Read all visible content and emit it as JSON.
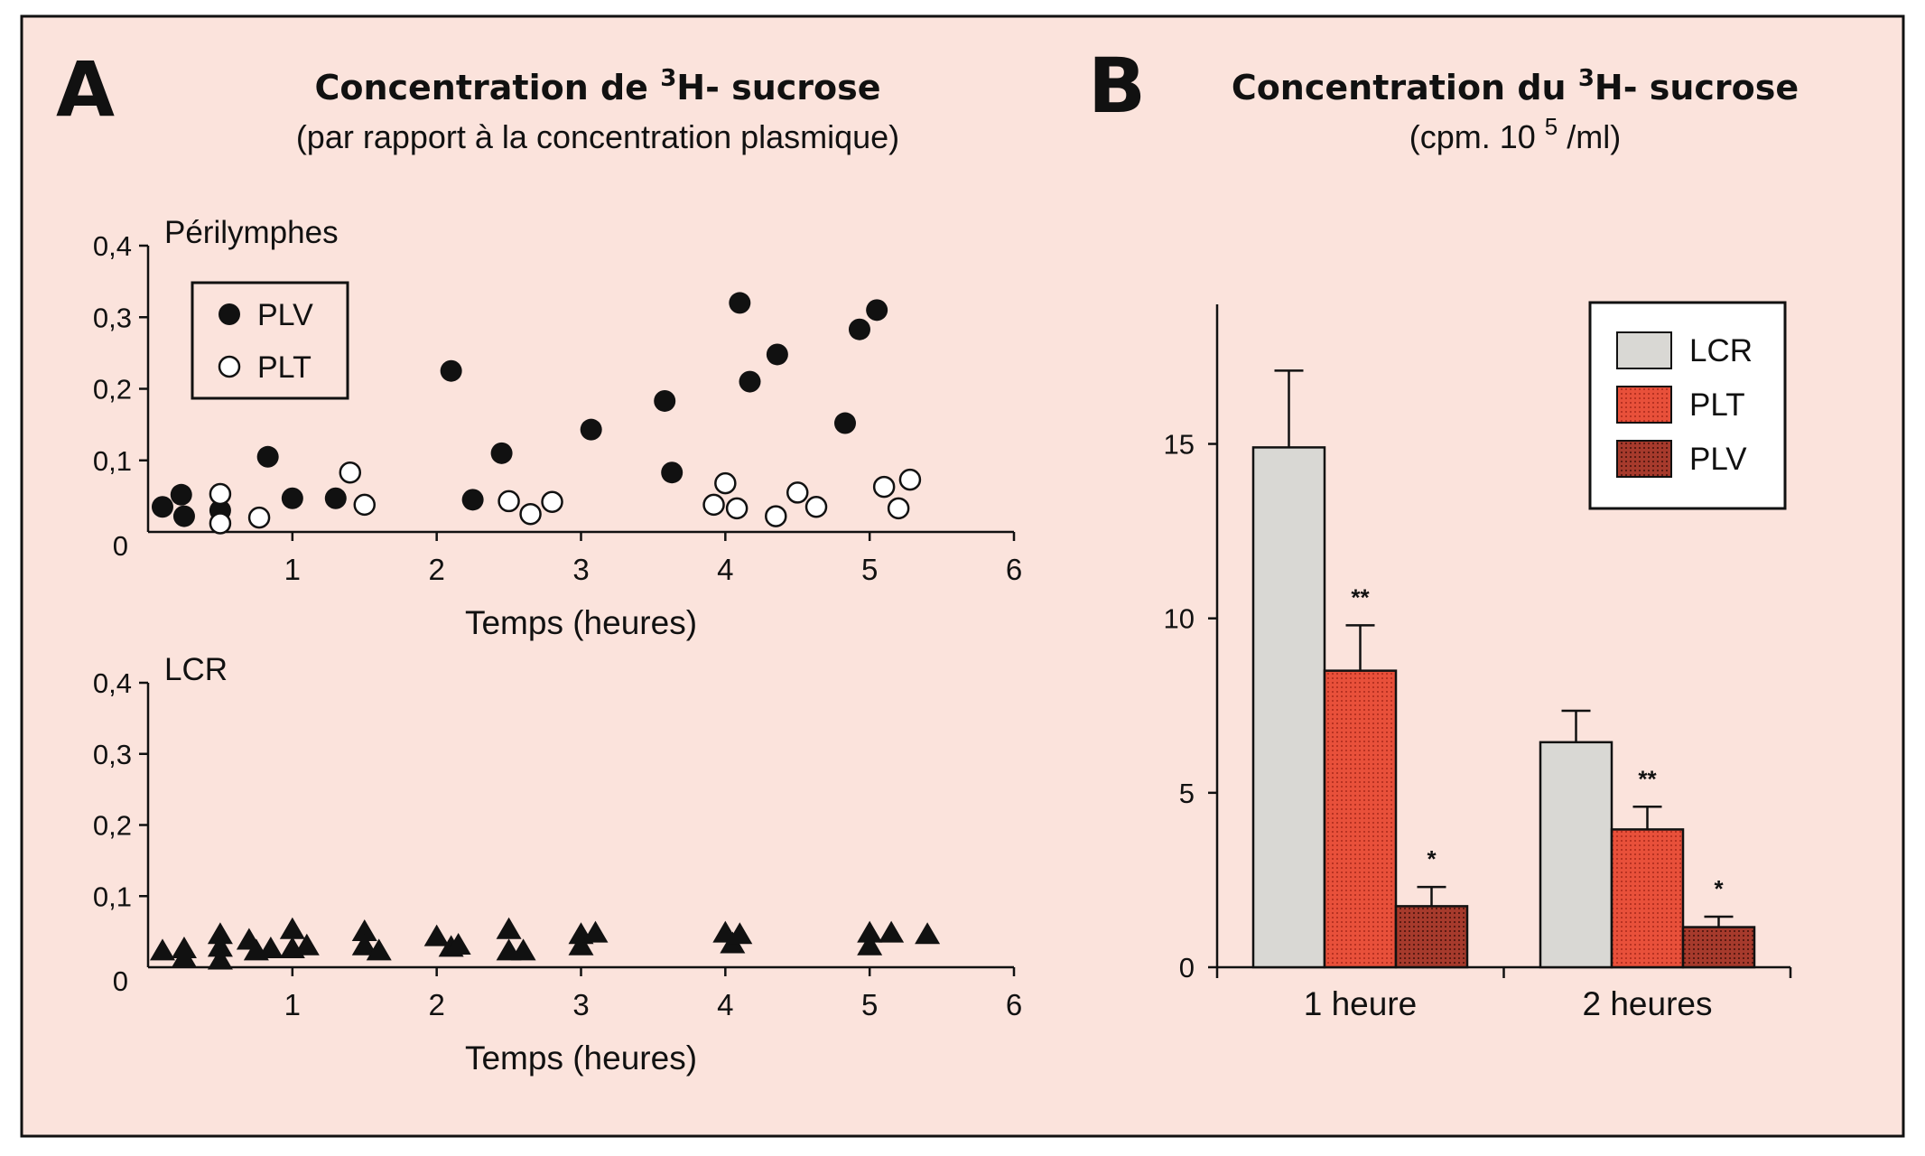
{
  "colors": {
    "background": "#fbe3dc",
    "ink": "#111111",
    "lcr_fill": "#d9d8d4",
    "plt_fill": "#e8503a",
    "plv_fill": "#a63a2c"
  },
  "panel_a": {
    "letter": "A",
    "title_line1": "Concentration de",
    "title_sup": "3",
    "title_line1_end": "H- sucrose",
    "title_line2": "(par rapport à la concentration plasmique)"
  },
  "panel_b": {
    "letter": "B",
    "title_line1": "Concentration du",
    "title_sup": "3",
    "title_line1_end": "H- sucrose",
    "title_line2_pre": "(cpm. 10",
    "title_line2_sup": "5",
    "title_line2_post": "/ml)"
  },
  "chart_data": [
    {
      "type": "scatter",
      "title": "Périlymphes",
      "xlabel": "Temps (heures)",
      "ylabel": "",
      "xlim": [
        0,
        6
      ],
      "ylim": [
        0,
        0.4
      ],
      "xticks": [
        "1",
        "2",
        "3",
        "4",
        "5",
        "6"
      ],
      "yticks": [
        "0",
        "0,1",
        "0,2",
        "0,3",
        "0,4"
      ],
      "legend": [
        "PLV",
        "PLT"
      ],
      "series": [
        {
          "name": "PLV",
          "marker": "filled-circle",
          "points": [
            [
              0.1,
              0.035
            ],
            [
              0.23,
              0.052
            ],
            [
              0.25,
              0.022
            ],
            [
              0.5,
              0.03
            ],
            [
              0.83,
              0.105
            ],
            [
              1.0,
              0.047
            ],
            [
              1.3,
              0.047
            ],
            [
              2.1,
              0.225
            ],
            [
              2.25,
              0.045
            ],
            [
              2.45,
              0.11
            ],
            [
              3.07,
              0.143
            ],
            [
              3.58,
              0.183
            ],
            [
              3.63,
              0.083
            ],
            [
              4.1,
              0.32
            ],
            [
              4.17,
              0.21
            ],
            [
              4.36,
              0.248
            ],
            [
              4.83,
              0.152
            ],
            [
              4.93,
              0.283
            ],
            [
              5.05,
              0.31
            ]
          ]
        },
        {
          "name": "PLT",
          "marker": "open-circle",
          "points": [
            [
              0.5,
              0.053
            ],
            [
              0.5,
              0.012
            ],
            [
              0.77,
              0.02
            ],
            [
              1.4,
              0.083
            ],
            [
              1.5,
              0.038
            ],
            [
              2.5,
              0.043
            ],
            [
              2.65,
              0.025
            ],
            [
              2.8,
              0.042
            ],
            [
              3.92,
              0.038
            ],
            [
              4.0,
              0.068
            ],
            [
              4.08,
              0.033
            ],
            [
              4.35,
              0.022
            ],
            [
              4.5,
              0.055
            ],
            [
              4.63,
              0.035
            ],
            [
              5.1,
              0.063
            ],
            [
              5.2,
              0.033
            ],
            [
              5.28,
              0.073
            ]
          ]
        }
      ]
    },
    {
      "type": "scatter",
      "title": "LCR",
      "xlabel": "Temps (heures)",
      "ylabel": "",
      "xlim": [
        0,
        6
      ],
      "ylim": [
        0,
        0.4
      ],
      "xticks": [
        "1",
        "2",
        "3",
        "4",
        "5",
        "6"
      ],
      "yticks": [
        "0",
        "0,1",
        "0,2",
        "0,3",
        "0,4"
      ],
      "series": [
        {
          "name": "LCR",
          "marker": "filled-triangle",
          "points": [
            [
              0.1,
              0.025
            ],
            [
              0.25,
              0.015
            ],
            [
              0.25,
              0.028
            ],
            [
              0.5,
              0.048
            ],
            [
              0.5,
              0.03
            ],
            [
              0.5,
              0.012
            ],
            [
              0.7,
              0.04
            ],
            [
              0.75,
              0.025
            ],
            [
              0.85,
              0.028
            ],
            [
              1.0,
              0.055
            ],
            [
              1.0,
              0.028
            ],
            [
              1.1,
              0.032
            ],
            [
              1.5,
              0.052
            ],
            [
              1.5,
              0.032
            ],
            [
              1.6,
              0.025
            ],
            [
              2.0,
              0.045
            ],
            [
              2.1,
              0.03
            ],
            [
              2.15,
              0.033
            ],
            [
              2.5,
              0.055
            ],
            [
              2.5,
              0.025
            ],
            [
              2.6,
              0.025
            ],
            [
              3.0,
              0.048
            ],
            [
              3.0,
              0.032
            ],
            [
              3.1,
              0.05
            ],
            [
              4.0,
              0.05
            ],
            [
              4.05,
              0.035
            ],
            [
              4.1,
              0.048
            ],
            [
              5.0,
              0.05
            ],
            [
              5.0,
              0.032
            ],
            [
              5.15,
              0.05
            ],
            [
              5.4,
              0.048
            ]
          ]
        }
      ]
    },
    {
      "type": "bar",
      "title": "Concentration du 3H- sucrose (cpm. 10 5 /ml)",
      "xlabel": "",
      "ylabel": "",
      "categories": [
        "1 heure",
        "2 heures"
      ],
      "ylim": [
        0,
        19
      ],
      "yticks": [
        "0",
        "5",
        "10",
        "15"
      ],
      "legend": [
        "LCR",
        "PLT",
        "PLV"
      ],
      "series": [
        {
          "name": "LCR",
          "values": [
            14.9,
            6.45
          ],
          "errors": [
            2.2,
            0.9
          ],
          "labels": [
            "",
            ""
          ]
        },
        {
          "name": "PLT",
          "values": [
            8.5,
            3.95
          ],
          "errors": [
            1.3,
            0.65
          ],
          "labels": [
            "**",
            "**"
          ]
        },
        {
          "name": "PLV",
          "values": [
            1.75,
            1.15
          ],
          "errors": [
            0.55,
            0.3
          ],
          "labels": [
            "*",
            "*"
          ]
        }
      ]
    }
  ]
}
